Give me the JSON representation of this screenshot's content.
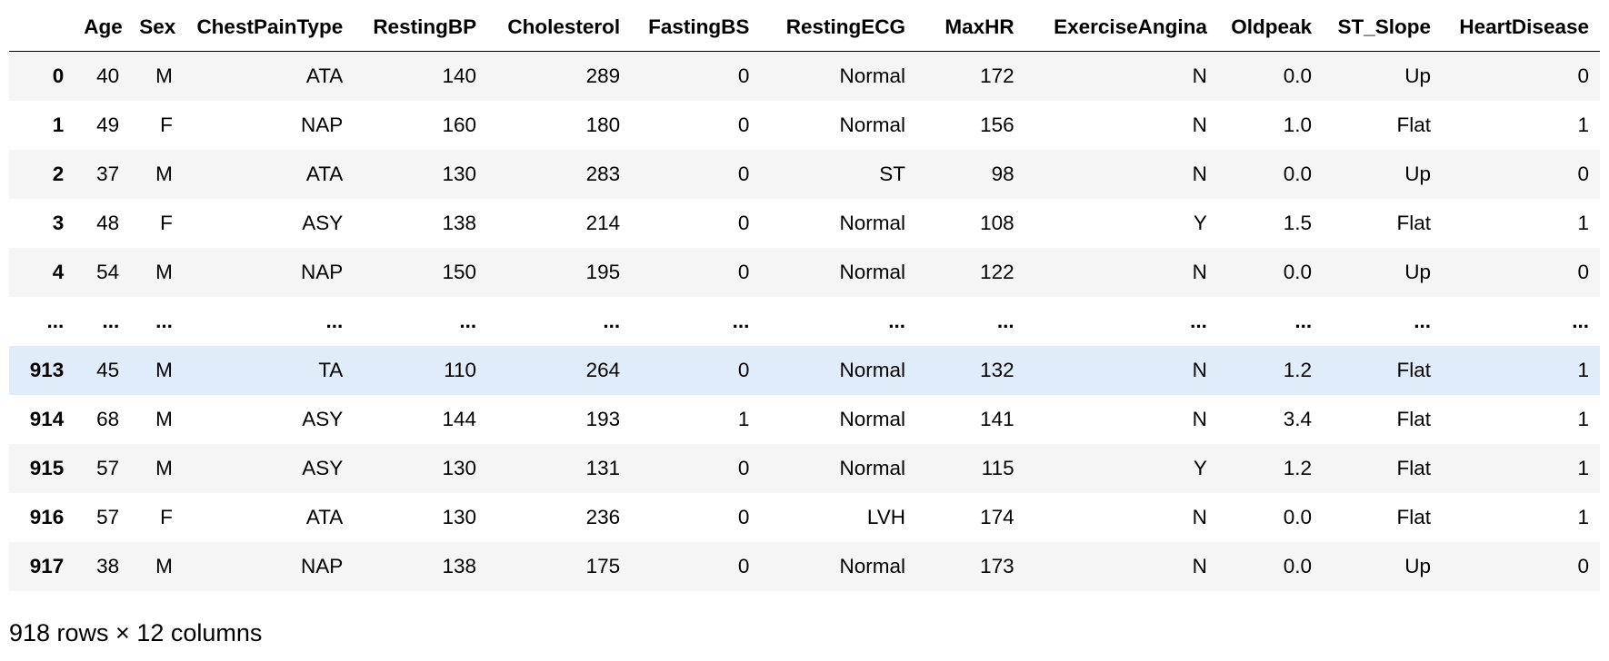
{
  "table": {
    "index_header": "",
    "columns": [
      "Age",
      "Sex",
      "ChestPainType",
      "RestingBP",
      "Cholesterol",
      "FastingBS",
      "RestingECG",
      "MaxHR",
      "ExerciseAngina",
      "Oldpeak",
      "ST_Slope",
      "HeartDisease"
    ],
    "rows": [
      {
        "index": "0",
        "cells": [
          "40",
          "M",
          "ATA",
          "140",
          "289",
          "0",
          "Normal",
          "172",
          "N",
          "0.0",
          "Up",
          "0"
        ]
      },
      {
        "index": "1",
        "cells": [
          "49",
          "F",
          "NAP",
          "160",
          "180",
          "0",
          "Normal",
          "156",
          "N",
          "1.0",
          "Flat",
          "1"
        ]
      },
      {
        "index": "2",
        "cells": [
          "37",
          "M",
          "ATA",
          "130",
          "283",
          "0",
          "ST",
          "98",
          "N",
          "0.0",
          "Up",
          "0"
        ]
      },
      {
        "index": "3",
        "cells": [
          "48",
          "F",
          "ASY",
          "138",
          "214",
          "0",
          "Normal",
          "108",
          "Y",
          "1.5",
          "Flat",
          "1"
        ]
      },
      {
        "index": "4",
        "cells": [
          "54",
          "M",
          "NAP",
          "150",
          "195",
          "0",
          "Normal",
          "122",
          "N",
          "0.0",
          "Up",
          "0"
        ]
      },
      {
        "index": "...",
        "cells": [
          "...",
          "...",
          "...",
          "...",
          "...",
          "...",
          "...",
          "...",
          "...",
          "...",
          "...",
          "..."
        ]
      },
      {
        "index": "913",
        "cells": [
          "45",
          "M",
          "TA",
          "110",
          "264",
          "0",
          "Normal",
          "132",
          "N",
          "1.2",
          "Flat",
          "1"
        ]
      },
      {
        "index": "914",
        "cells": [
          "68",
          "M",
          "ASY",
          "144",
          "193",
          "1",
          "Normal",
          "141",
          "N",
          "3.4",
          "Flat",
          "1"
        ]
      },
      {
        "index": "915",
        "cells": [
          "57",
          "M",
          "ASY",
          "130",
          "131",
          "0",
          "Normal",
          "115",
          "Y",
          "1.2",
          "Flat",
          "1"
        ]
      },
      {
        "index": "916",
        "cells": [
          "57",
          "F",
          "ATA",
          "130",
          "236",
          "0",
          "LVH",
          "174",
          "N",
          "0.0",
          "Flat",
          "1"
        ]
      },
      {
        "index": "917",
        "cells": [
          "38",
          "M",
          "NAP",
          "138",
          "175",
          "0",
          "Normal",
          "173",
          "N",
          "0.0",
          "Up",
          "0"
        ]
      }
    ],
    "hovered_row": "913"
  },
  "footer": {
    "shape_text": "918 rows × 12 columns"
  },
  "colors": {
    "stripe": "#f5f5f5",
    "hover": "#e1ecfa",
    "border": "#000000"
  }
}
